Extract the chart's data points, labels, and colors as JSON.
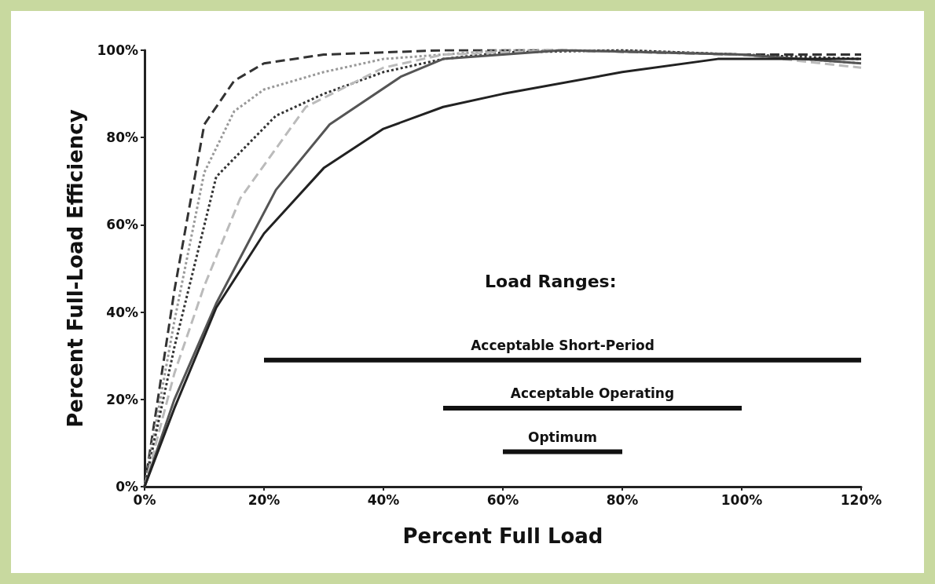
{
  "chart_data": {
    "type": "line",
    "xlabel": "Percent Full Load",
    "ylabel": "Percent Full-Load Efficiency",
    "xlim": [
      0,
      120
    ],
    "ylim": [
      0,
      100
    ],
    "xticks": [
      {
        "value": 0,
        "label": "0%"
      },
      {
        "value": 20,
        "label": "20%"
      },
      {
        "value": 40,
        "label": "40%"
      },
      {
        "value": 60,
        "label": "60%"
      },
      {
        "value": 80,
        "label": "80%"
      },
      {
        "value": 100,
        "label": "100%"
      },
      {
        "value": 120,
        "label": "120%"
      }
    ],
    "yticks": [
      {
        "value": 0,
        "label": "0%"
      },
      {
        "value": 20,
        "label": "20%"
      },
      {
        "value": 40,
        "label": "40%"
      },
      {
        "value": 60,
        "label": "60%"
      },
      {
        "value": 80,
        "label": "80%"
      },
      {
        "value": 100,
        "label": "100%"
      }
    ],
    "grid": false,
    "legend": false,
    "marker": "none",
    "annotations": [
      "Load Ranges:"
    ],
    "series": [
      {
        "color": "#333333",
        "line_style": "dashed",
        "x": [
          0,
          5,
          10,
          15,
          20,
          30,
          50,
          70,
          100,
          120
        ],
        "values": [
          0,
          45,
          83,
          93,
          97,
          99,
          100,
          100,
          99,
          99
        ]
      },
      {
        "color": "#999999",
        "line_style": "dotted",
        "x": [
          0,
          5,
          10,
          15,
          20,
          30,
          40,
          60,
          80,
          100,
          120
        ],
        "values": [
          0,
          38,
          72,
          86,
          91,
          95,
          98,
          100,
          100,
          99,
          97
        ]
      },
      {
        "color": "#333333",
        "line_style": "dotted",
        "x": [
          0,
          5,
          12,
          22,
          30,
          40,
          50,
          60,
          80,
          100,
          120
        ],
        "values": [
          0,
          32,
          71,
          85,
          90,
          95,
          98,
          99.5,
          100,
          99,
          98
        ]
      },
      {
        "color": "#bbbbbb",
        "line_style": "dashed",
        "x": [
          0,
          5,
          10,
          16,
          27,
          40,
          50,
          70,
          100,
          120
        ],
        "values": [
          0,
          26,
          46,
          66,
          87,
          96,
          99,
          100,
          99,
          96
        ]
      },
      {
        "color": "#555555",
        "line_style": "solid",
        "x": [
          0,
          5,
          12,
          22,
          31,
          43,
          50,
          70,
          100,
          120
        ],
        "values": [
          0,
          20,
          42,
          68,
          83,
          94,
          98,
          100,
          99,
          97
        ]
      },
      {
        "color": "#222222",
        "line_style": "solid",
        "x": [
          0,
          5,
          12,
          20,
          30,
          40,
          50,
          60,
          80,
          96,
          120
        ],
        "values": [
          0,
          18,
          41,
          58,
          73,
          82,
          87,
          90,
          95,
          98,
          98
        ]
      },
      {
        "name": "Acceptable Short-Period",
        "color": "#111111",
        "line_style": "solid",
        "x": [
          20,
          120
        ],
        "values": [
          29,
          29
        ]
      },
      {
        "name": "Acceptable Operating",
        "color": "#111111",
        "line_style": "solid",
        "x": [
          50,
          100
        ],
        "values": [
          18,
          18
        ]
      },
      {
        "name": "Optimum",
        "color": "#111111",
        "line_style": "solid",
        "x": [
          60,
          80
        ],
        "values": [
          8,
          8
        ]
      }
    ]
  }
}
